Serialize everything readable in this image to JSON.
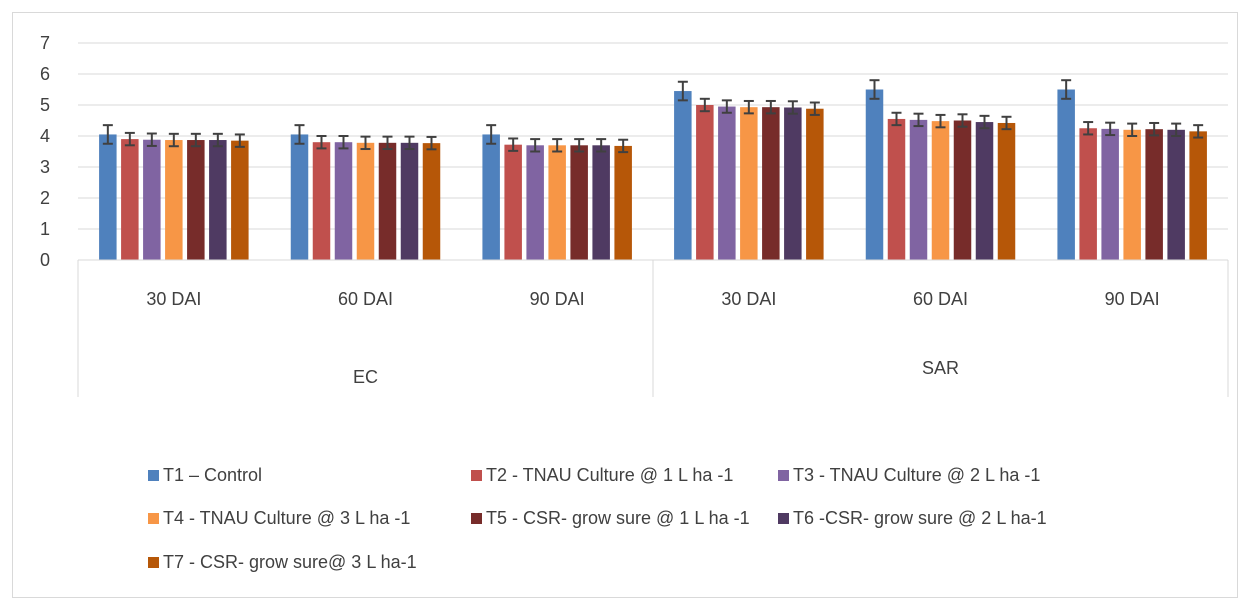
{
  "chart_data": {
    "type": "bar",
    "groups": [
      {
        "label": "EC",
        "categories": [
          "30 DAI",
          "60 DAI",
          "90 DAI"
        ]
      },
      {
        "label": "SAR",
        "categories": [
          "30 DAI",
          "60 DAI",
          "90 DAI"
        ]
      }
    ],
    "categories": [
      "30 DAI",
      "60 DAI",
      "90 DAI",
      "30 DAI",
      "60 DAI",
      "90 DAI"
    ],
    "ylim": [
      0,
      7
    ],
    "yticks": [
      "0",
      "1",
      "2",
      "3",
      "4",
      "5",
      "6",
      "7"
    ],
    "grid": true,
    "legend_position": "bottom",
    "error_bars": true,
    "series": [
      {
        "name": "T1 – Control",
        "color": "#4f81bd",
        "values": [
          4.05,
          4.05,
          4.05,
          5.45,
          5.5,
          5.5
        ],
        "errors": [
          0.3,
          0.3,
          0.3,
          0.3,
          0.3,
          0.3
        ]
      },
      {
        "name": "T2 - TNAU Culture @ 1 L ha -1",
        "color": "#c0504d",
        "values": [
          3.9,
          3.8,
          3.72,
          5.0,
          4.55,
          4.25
        ],
        "errors": [
          0.2,
          0.2,
          0.2,
          0.2,
          0.2,
          0.2
        ]
      },
      {
        "name": "T3 - TNAU Culture @ 2 L ha -1",
        "color": "#8064a2",
        "values": [
          3.88,
          3.8,
          3.7,
          4.95,
          4.52,
          4.23
        ],
        "errors": [
          0.2,
          0.2,
          0.2,
          0.2,
          0.2,
          0.2
        ]
      },
      {
        "name": "T4 - TNAU Culture @ 3 L ha -1",
        "color": "#f79646",
        "values": [
          3.87,
          3.78,
          3.7,
          4.93,
          4.48,
          4.2
        ],
        "errors": [
          0.2,
          0.2,
          0.2,
          0.2,
          0.2,
          0.2
        ]
      },
      {
        "name": "T5 - CSR- grow sure @ 1 L ha -1",
        "color": "#772c2a",
        "values": [
          3.87,
          3.78,
          3.7,
          4.93,
          4.5,
          4.22
        ],
        "errors": [
          0.2,
          0.2,
          0.2,
          0.2,
          0.2,
          0.2
        ]
      },
      {
        "name": "T6 -CSR- grow sure @ 2 L ha-1",
        "color": "#4f3a62",
        "values": [
          3.87,
          3.78,
          3.7,
          4.92,
          4.45,
          4.2
        ],
        "errors": [
          0.2,
          0.2,
          0.2,
          0.2,
          0.2,
          0.2
        ]
      },
      {
        "name": "T7 - CSR- grow sure@ 3 L ha-1",
        "color": "#b65708",
        "values": [
          3.85,
          3.77,
          3.68,
          4.88,
          4.42,
          4.15
        ],
        "errors": [
          0.2,
          0.2,
          0.2,
          0.2,
          0.2,
          0.2
        ]
      }
    ]
  }
}
